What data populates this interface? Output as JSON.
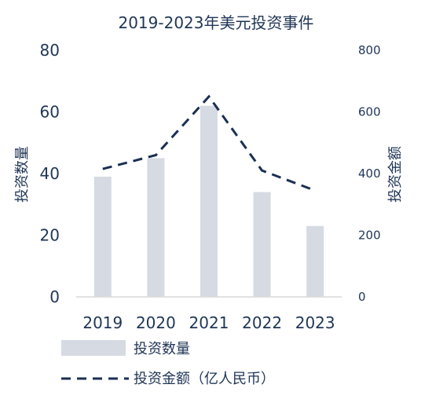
{
  "chart_data": {
    "type": "bar",
    "title": "2019-2023年美元投资事件",
    "categories": [
      "2019",
      "2020",
      "2021",
      "2022",
      "2023"
    ],
    "series": [
      {
        "name": "投资数量",
        "type": "bar",
        "axis": "left",
        "values": [
          39,
          45,
          62,
          34,
          23
        ],
        "color": "#d5dae3"
      },
      {
        "name": "投资金额（亿人民币）",
        "type": "line",
        "style": "dashed",
        "axis": "right",
        "values": [
          415,
          460,
          650,
          410,
          345
        ],
        "color": "#1a2f52"
      }
    ],
    "ylabel": "投资数量",
    "ylim": [
      0,
      80
    ],
    "yticks": [
      "0",
      "20",
      "40",
      "60",
      "80"
    ],
    "y2label": "投资金额",
    "y2lim": [
      0,
      800
    ],
    "y2ticks": [
      "0",
      "200",
      "400",
      "600",
      "800"
    ],
    "grid": false,
    "legend_position": "bottom-left"
  }
}
